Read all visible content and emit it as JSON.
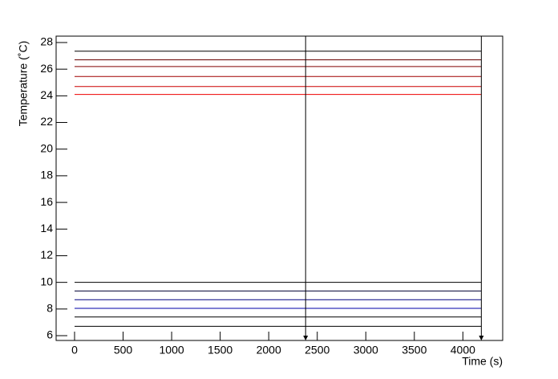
{
  "chart_data": {
    "type": "line",
    "xlabel": "Time (s)",
    "ylabel": "Temperature (˚C)",
    "x": [
      0,
      4190
    ],
    "series": [
      {
        "color": "#000000",
        "values": [
          27.35,
          27.35
        ]
      },
      {
        "color": "#660000",
        "values": [
          26.7,
          26.7
        ]
      },
      {
        "color": "#800000",
        "values": [
          26.2,
          26.2
        ]
      },
      {
        "color": "#a00000",
        "values": [
          25.45,
          25.45
        ]
      },
      {
        "color": "#cc0000",
        "values": [
          24.7,
          24.7
        ]
      },
      {
        "color": "#ee0000",
        "values": [
          24.1,
          24.1
        ]
      },
      {
        "color": "#000000",
        "values": [
          10.0,
          10.0
        ]
      },
      {
        "color": "#000033",
        "values": [
          9.35,
          9.35
        ]
      },
      {
        "color": "#000080",
        "values": [
          8.7,
          8.7
        ]
      },
      {
        "color": "#0000aa",
        "values": [
          8.05,
          8.05
        ]
      },
      {
        "color": "#000000",
        "values": [
          7.4,
          7.4
        ]
      },
      {
        "color": "#000000",
        "values": [
          6.7,
          6.7
        ]
      }
    ],
    "markers": [
      2380,
      4190
    ],
    "xlim": [
      -190,
      4410
    ],
    "ylim": [
      5.64,
      28.48
    ],
    "xticks": [
      0,
      500,
      1000,
      1500,
      2000,
      2500,
      3000,
      3500,
      4000
    ],
    "yticks": [
      6,
      8,
      10,
      12,
      14,
      16,
      18,
      20,
      22,
      24,
      26,
      28
    ]
  }
}
